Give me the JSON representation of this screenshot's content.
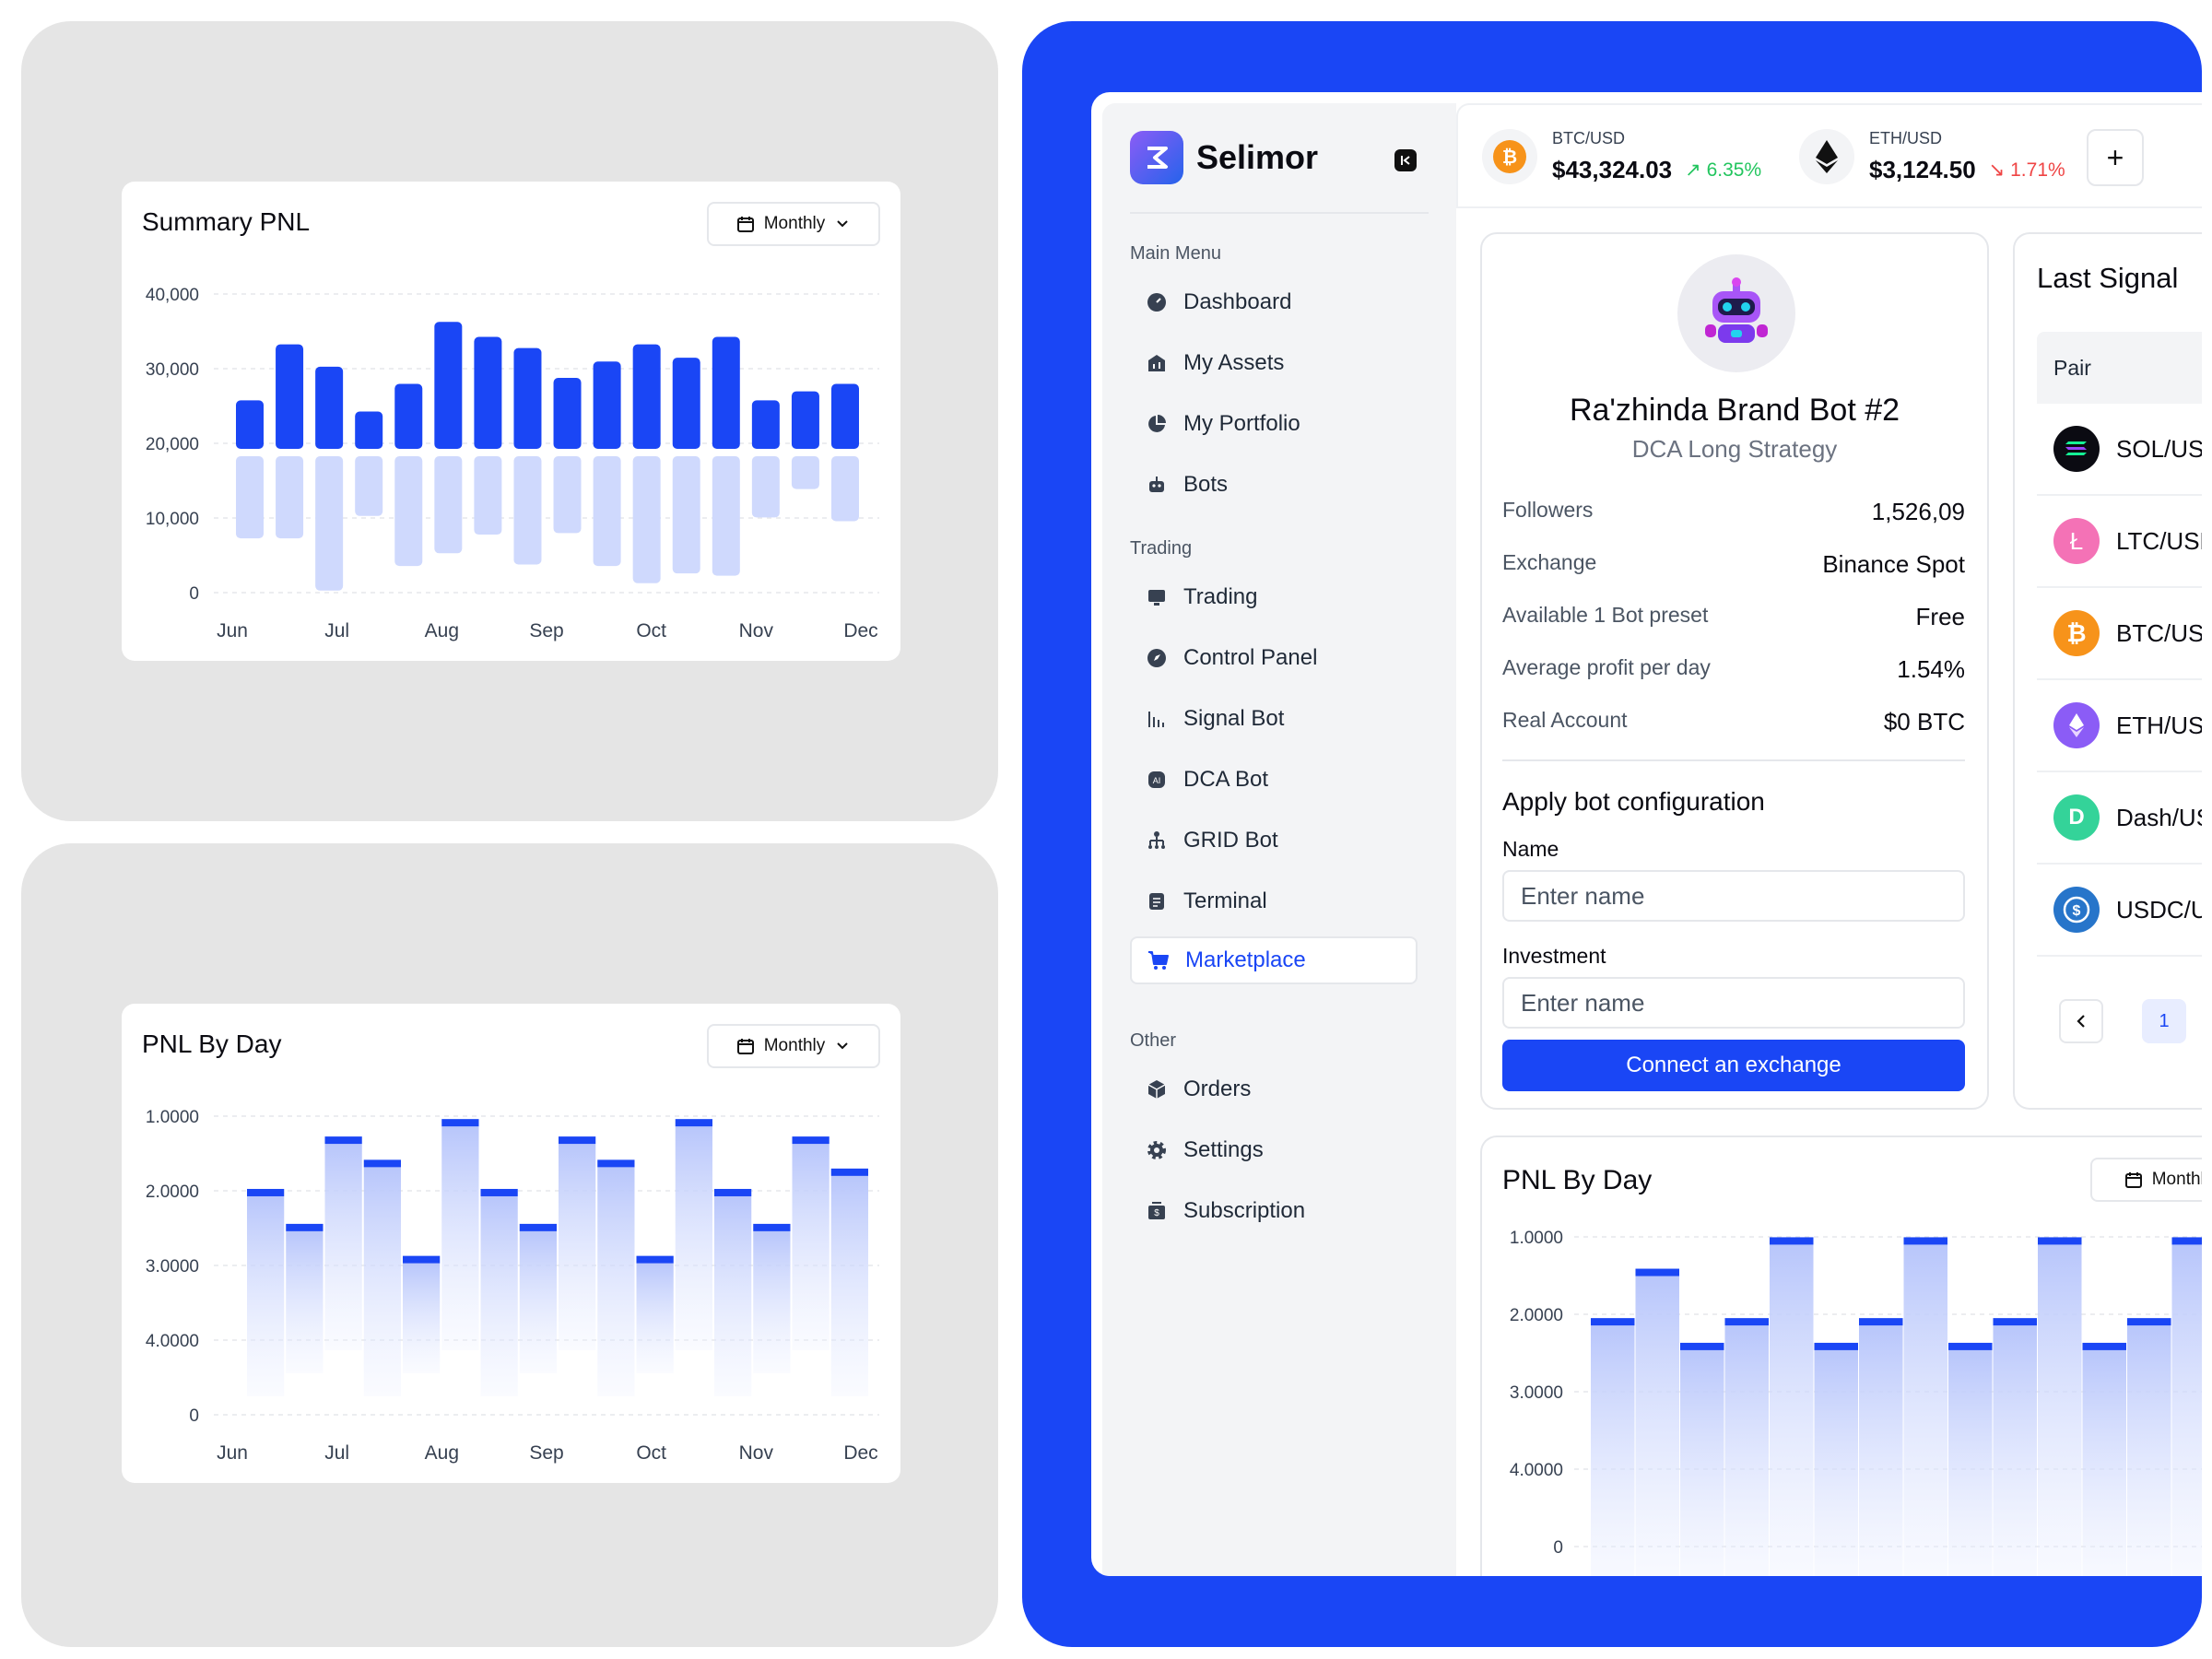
{
  "left_top": {
    "title": "Summary PNL",
    "dropdown": "Monthly",
    "chart_data": {
      "type": "bar",
      "title": "Summary PNL",
      "yticks": [
        "40,000",
        "30,000",
        "20,000",
        "10,000",
        "0"
      ],
      "xticks": [
        "Jun",
        "Jul",
        "Aug",
        "Sep",
        "Oct",
        "Nov",
        "Dec"
      ],
      "ylim": [
        0,
        40000
      ],
      "series": [
        {
          "values": [
            6500,
            14000,
            11000,
            5000,
            8700,
            17000,
            15000,
            13500,
            9500,
            11700,
            14000,
            12200,
            15000,
            6500,
            7700,
            8700
          ]
        },
        {
          "values": [
            11000,
            11000,
            18000,
            8000,
            14700,
            13000,
            10500,
            14500,
            10300,
            14700,
            17000,
            15700,
            16000,
            8200,
            4400,
            8700
          ]
        }
      ],
      "grid": true
    }
  },
  "left_bottom": {
    "title": "PNL By Day",
    "dropdown": "Monthly",
    "chart_data": {
      "type": "bar",
      "title": "PNL By Day",
      "yticks": [
        "1.0000",
        "2.0000",
        "3.0000",
        "4.0000",
        "0"
      ],
      "xticks": [
        "Jun",
        "Jul",
        "Aug",
        "Sep",
        "Oct",
        "Nov",
        "Dec"
      ],
      "values": [
        2.25,
        2.85,
        1.35,
        1.75,
        3.4,
        1.05,
        2.25,
        2.85,
        1.35,
        1.75,
        3.4,
        1.05,
        2.25,
        2.85,
        1.35,
        1.9
      ],
      "grid": true
    }
  },
  "app": {
    "brand": "Selimor",
    "menu_label": "Main Menu",
    "menu": [
      "Dashboard",
      "My Assets",
      "My Portfolio",
      "Bots"
    ],
    "trading_label": "Trading",
    "trading": [
      "Trading",
      "Control Panel",
      "Signal Bot",
      "DCA Bot",
      "GRID Bot",
      "Terminal",
      "Marketplace"
    ],
    "other_label": "Other",
    "other": [
      "Orders",
      "Settings",
      "Subscription"
    ],
    "active_item": "Marketplace",
    "accent": "#1a46f5",
    "tickers": [
      {
        "pair": "BTC/USD",
        "price": "$43,324.03",
        "change": "6.35%",
        "dir": "up"
      },
      {
        "pair": "ETH/USD",
        "price": "$3,124.50",
        "change": "1.71%",
        "dir": "down"
      }
    ],
    "add_label": "+",
    "bot": {
      "name": "Ra'zhinda Brand Bot #2",
      "strategy": "DCA Long Strategy",
      "stats": [
        {
          "k": "Followers",
          "v": "1,526,09"
        },
        {
          "k": "Exchange",
          "v": "Binance Spot"
        },
        {
          "k": "Available 1 Bot preset",
          "v": "Free"
        },
        {
          "k": "Average profit per day",
          "v": "1.54%"
        },
        {
          "k": "Real Account",
          "v": "$0 BTC"
        }
      ],
      "config_title": "Apply bot configuration",
      "name_label": "Name",
      "name_placeholder": "Enter name",
      "investment_label": "Investment",
      "investment_placeholder": "Enter name",
      "connect_label": "Connect an exchange"
    },
    "signal": {
      "title": "Last Signal",
      "pair_header": "Pair",
      "pairs": [
        "SOL/USD",
        "LTC/USD",
        "BTC/USD",
        "ETH/USD",
        "Dash/USD",
        "USDC/USD"
      ],
      "page": "1"
    },
    "pnl": {
      "title": "PNL By Day",
      "dropdown": "Monthly",
      "chart_data": {
        "type": "bar",
        "title": "PNL By Day",
        "yticks": [
          "1.0000",
          "2.0000",
          "3.0000",
          "4.0000",
          "0"
        ],
        "values": [
          2.85,
          1.75,
          3.4,
          2.85,
          1.05,
          3.4,
          2.85,
          1.05,
          3.4,
          2.85,
          1.05,
          3.4,
          2.85,
          1.05,
          3.4
        ]
      }
    }
  }
}
